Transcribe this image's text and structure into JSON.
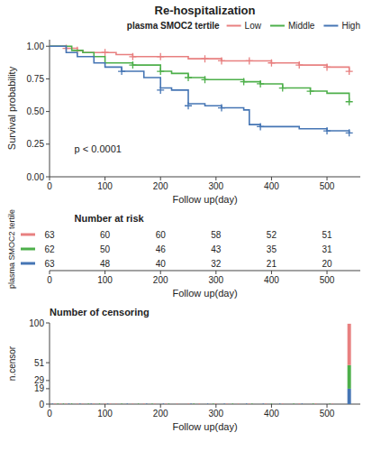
{
  "chart_data": [
    {
      "type": "step",
      "title": "Re-hospitalization",
      "xlabel": "Follow up(day)",
      "ylabel": "Survival probability",
      "annotations": [
        "p < 0.0001"
      ],
      "legend_title": "plasma SMOC2 tertile",
      "legend": "top",
      "marker": "plus",
      "xlim": [
        0,
        560
      ],
      "xticks": [
        0,
        100,
        200,
        300,
        400,
        500
      ],
      "ylim": [
        0.0,
        1.05
      ],
      "yticks": [
        {
          "value": 0,
          "label": "0.00"
        },
        0.25,
        {
          "value": 0.5,
          "label": "0.50"
        },
        0.75,
        {
          "value": 1,
          "label": "1.00"
        }
      ],
      "series": [
        {
          "name": "Low",
          "color": "#E88080",
          "x": [
            0,
            30,
            50,
            60,
            100,
            120,
            150,
            200,
            250,
            280,
            310,
            360,
            400,
            450,
            500,
            540
          ],
          "values": [
            1.0,
            0.984,
            0.968,
            0.952,
            0.952,
            0.936,
            0.92,
            0.92,
            0.904,
            0.904,
            0.888,
            0.888,
            0.872,
            0.856,
            0.84,
            0.808
          ],
          "censor_x": [
            30,
            50,
            100,
            150,
            200,
            280,
            310,
            360,
            400,
            450,
            500,
            540
          ],
          "censor_values": [
            0.984,
            0.968,
            0.952,
            0.92,
            0.92,
            0.904,
            0.888,
            0.888,
            0.872,
            0.856,
            0.84,
            0.808
          ]
        },
        {
          "name": "Middle",
          "color": "#4DAF4A",
          "x": [
            0,
            40,
            60,
            80,
            100,
            150,
            200,
            220,
            250,
            280,
            300,
            350,
            380,
            420,
            470,
            500,
            540
          ],
          "values": [
            1.0,
            0.968,
            0.952,
            0.92,
            0.872,
            0.856,
            0.808,
            0.792,
            0.76,
            0.744,
            0.744,
            0.728,
            0.712,
            0.68,
            0.656,
            0.64,
            0.575
          ],
          "censor_x": [
            150,
            200,
            250,
            280,
            350,
            380,
            420,
            470,
            540
          ],
          "censor_values": [
            0.856,
            0.808,
            0.76,
            0.744,
            0.728,
            0.712,
            0.68,
            0.656,
            0.575
          ]
        },
        {
          "name": "High",
          "color": "#4575B4",
          "x": [
            0,
            30,
            50,
            80,
            100,
            130,
            170,
            200,
            220,
            250,
            280,
            310,
            350,
            360,
            380,
            400,
            450,
            500,
            540
          ],
          "values": [
            1.0,
            0.952,
            0.92,
            0.872,
            0.84,
            0.808,
            0.76,
            0.68,
            0.664,
            0.56,
            0.544,
            0.528,
            0.512,
            0.4,
            0.384,
            0.384,
            0.368,
            0.352,
            0.336
          ],
          "censor_x": [
            130,
            200,
            250,
            310,
            380,
            500,
            540
          ],
          "censor_values": [
            0.808,
            0.664,
            0.544,
            0.528,
            0.384,
            0.352,
            0.336
          ]
        }
      ]
    },
    {
      "type": "table",
      "title": "Number at risk",
      "xlabel": "Follow up(day)",
      "ylabel": "plasma SMOC2 tertile",
      "xlim": [
        0,
        560
      ],
      "xticks": [
        0,
        100,
        200,
        300,
        400,
        500
      ],
      "x": [
        0,
        100,
        200,
        300,
        400,
        500
      ],
      "data_labels": true,
      "series": [
        {
          "color": "#E88080",
          "values": [
            63,
            60,
            60,
            58,
            52,
            51
          ]
        },
        {
          "color": "#4DAF4A",
          "values": [
            62,
            50,
            46,
            43,
            35,
            31
          ]
        },
        {
          "color": "#4575B4",
          "values": [
            63,
            48,
            40,
            32,
            21,
            20
          ]
        }
      ]
    },
    {
      "type": "bar",
      "title": "Number of censoring",
      "xlabel": "Follow up(day)",
      "ylabel": "n.censor",
      "stacked": true,
      "xlim": [
        0,
        560
      ],
      "xticks": [
        0,
        100,
        200,
        300,
        400,
        500
      ],
      "ylim": [
        0,
        100
      ],
      "yticks": [
        0,
        19,
        29,
        51,
        100
      ],
      "series": [
        {
          "color": "#E88080",
          "x": [
            10,
            20,
            30,
            50,
            60,
            80,
            100,
            110,
            120,
            150,
            170,
            190,
            210,
            230,
            250,
            270,
            300,
            320,
            340,
            360,
            390,
            420,
            450,
            480,
            510,
            540
          ],
          "values": [
            1,
            1,
            1,
            1,
            1,
            1,
            1,
            1,
            1,
            1,
            1,
            1,
            1,
            1,
            1,
            1,
            1,
            1,
            1,
            1,
            1,
            1,
            1,
            1,
            1,
            51
          ]
        },
        {
          "color": "#4DAF4A",
          "x": [
            15,
            25,
            40,
            70,
            90,
            130,
            160,
            185,
            215,
            260,
            295,
            330,
            365,
            400,
            440,
            475,
            505,
            540
          ],
          "values": [
            1,
            1,
            1,
            1,
            1,
            1,
            1,
            1,
            1,
            1,
            1,
            1,
            1,
            1,
            1,
            1,
            1,
            29
          ]
        },
        {
          "color": "#4575B4",
          "x": [
            5,
            35,
            55,
            75,
            105,
            140,
            175,
            205,
            255,
            285,
            315,
            355,
            385,
            415,
            455,
            540
          ],
          "values": [
            1,
            1,
            1,
            1,
            1,
            1,
            1,
            1,
            1,
            1,
            1,
            1,
            1,
            1,
            1,
            19
          ]
        }
      ]
    }
  ]
}
